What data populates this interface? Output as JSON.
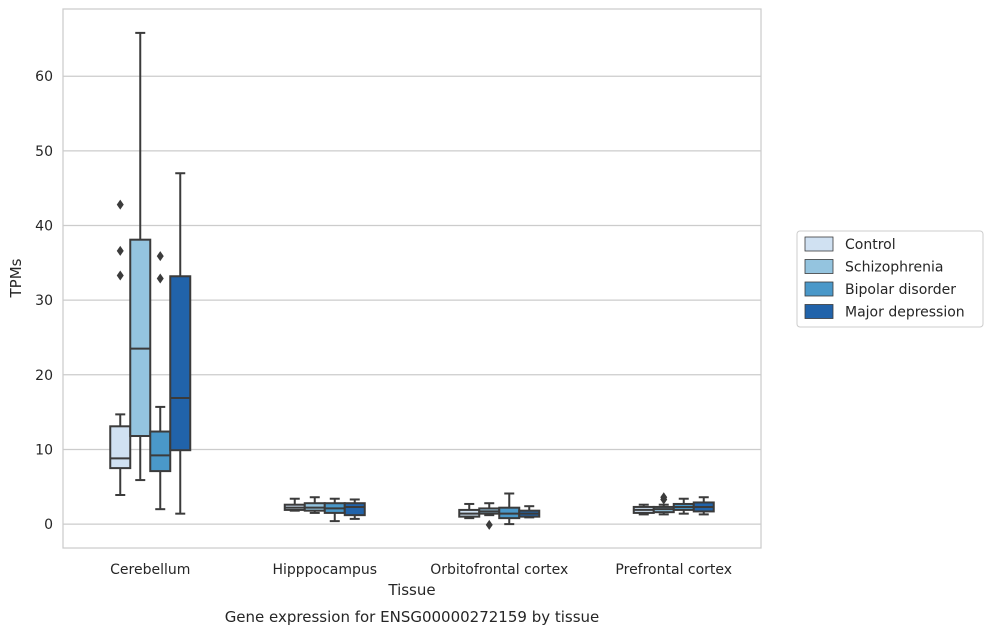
{
  "chart_data": {
    "type": "box",
    "caption": "Gene expression for ENSG00000272159 by tissue",
    "xlabel": "Tissue",
    "ylabel": "TPMs",
    "ylim": [
      -3.2,
      69
    ],
    "yticks": [
      0,
      10,
      20,
      30,
      40,
      50,
      60
    ],
    "grid": "horizontal",
    "legend_position": "right",
    "categories": [
      "Cerebellum",
      "Hipppocampus",
      "Orbitofrontal cortex",
      "Prefrontal cortex"
    ],
    "series": [
      {
        "name": "Control",
        "color": "#d0e1f2",
        "boxes": [
          {
            "whisker_low": 3.9,
            "q1": 7.5,
            "median": 8.8,
            "q3": 13.1,
            "whisker_high": 14.7,
            "outliers": [
              42.8,
              36.6,
              33.3
            ]
          },
          {
            "whisker_low": 1.8,
            "q1": 1.9,
            "median": 2.2,
            "q3": 2.6,
            "whisker_high": 3.4,
            "outliers": []
          },
          {
            "whisker_low": 0.8,
            "q1": 1.0,
            "median": 1.4,
            "q3": 1.9,
            "whisker_high": 2.7,
            "outliers": []
          },
          {
            "whisker_low": 1.3,
            "q1": 1.5,
            "median": 1.9,
            "q3": 2.3,
            "whisker_high": 2.6,
            "outliers": []
          }
        ]
      },
      {
        "name": "Schizophrenia",
        "color": "#94c4df",
        "boxes": [
          {
            "whisker_low": 5.9,
            "q1": 11.8,
            "median": 23.5,
            "q3": 38.1,
            "whisker_high": 65.8,
            "outliers": []
          },
          {
            "whisker_low": 1.5,
            "q1": 1.8,
            "median": 2.2,
            "q3": 2.8,
            "whisker_high": 3.6,
            "outliers": []
          },
          {
            "whisker_low": 1.2,
            "q1": 1.4,
            "median": 1.7,
            "q3": 2.1,
            "whisker_high": 2.8,
            "outliers": [
              -0.1
            ]
          },
          {
            "whisker_low": 1.3,
            "q1": 1.6,
            "median": 2.0,
            "q3": 2.3,
            "whisker_high": 2.6,
            "outliers": [
              3.6,
              3.3
            ]
          }
        ]
      },
      {
        "name": "Bipolar disorder",
        "color": "#4a98c9",
        "boxes": [
          {
            "whisker_low": 2.0,
            "q1": 7.1,
            "median": 9.2,
            "q3": 12.4,
            "whisker_high": 15.7,
            "outliers": [
              35.9,
              32.9
            ]
          },
          {
            "whisker_low": 0.4,
            "q1": 1.5,
            "median": 2.1,
            "q3": 2.8,
            "whisker_high": 3.4,
            "outliers": []
          },
          {
            "whisker_low": 0.0,
            "q1": 0.8,
            "median": 1.4,
            "q3": 2.2,
            "whisker_high": 4.1,
            "outliers": []
          },
          {
            "whisker_low": 1.4,
            "q1": 1.9,
            "median": 2.3,
            "q3": 2.7,
            "whisker_high": 3.4,
            "outliers": []
          }
        ]
      },
      {
        "name": "Major depression",
        "color": "#2163aa",
        "boxes": [
          {
            "whisker_low": 1.4,
            "q1": 9.9,
            "median": 16.9,
            "q3": 33.2,
            "whisker_high": 47.0,
            "outliers": []
          },
          {
            "whisker_low": 0.7,
            "q1": 1.2,
            "median": 2.3,
            "q3": 2.8,
            "whisker_high": 3.3,
            "outliers": []
          },
          {
            "whisker_low": 0.9,
            "q1": 1.0,
            "median": 1.4,
            "q3": 1.8,
            "whisker_high": 2.4,
            "outliers": []
          },
          {
            "whisker_low": 1.3,
            "q1": 1.7,
            "median": 2.3,
            "q3": 2.9,
            "whisker_high": 3.6,
            "outliers": []
          }
        ]
      }
    ]
  }
}
